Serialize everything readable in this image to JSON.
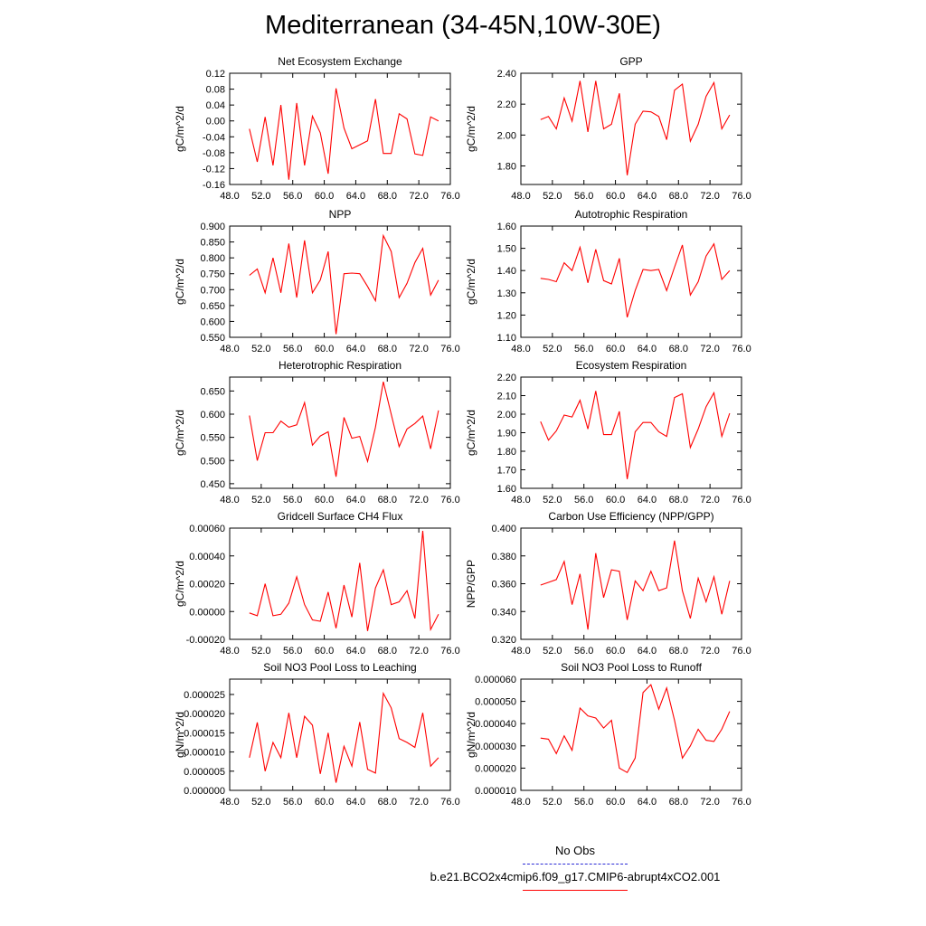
{
  "title": "Mediterranean (34-45N,10W-30E)",
  "legend": {
    "items": [
      {
        "label": "No Obs",
        "color": "#2b2bd6",
        "dash": "dashed"
      },
      {
        "label": "b.e21.BCO2x4cmip6.f09_g17.CMIP6-abrupt4xCO2.001",
        "color": "#ff0000",
        "dash": "solid"
      }
    ]
  },
  "series_color": "#ff0000",
  "chart_data": [
    {
      "type": "line",
      "title": "Net Ecosystem Exchange",
      "ylabel": "gC/m^2/d",
      "xlim": [
        48,
        76
      ],
      "ylim": [
        -0.16,
        0.12
      ],
      "xticks": [
        "48.0",
        "52.0",
        "56.0",
        "60.0",
        "64.0",
        "68.0",
        "72.0",
        "76.0"
      ],
      "yticks": [
        "-0.16",
        "-0.12",
        "-0.08",
        "-0.04",
        "0.00",
        "0.04",
        "0.08",
        "0.12"
      ],
      "x": [
        50.5,
        51.5,
        52.5,
        53.5,
        54.5,
        55.5,
        56.5,
        57.5,
        58.5,
        59.5,
        60.5,
        61.5,
        62.5,
        63.5,
        64.5,
        65.5,
        66.5,
        67.5,
        68.5,
        69.5,
        70.5,
        71.5,
        72.5,
        73.5,
        74.5
      ],
      "y": [
        -0.02,
        -0.103,
        0.01,
        -0.112,
        0.04,
        -0.148,
        0.045,
        -0.112,
        0.012,
        -0.03,
        -0.133,
        0.082,
        -0.018,
        -0.07,
        -0.06,
        -0.05,
        0.055,
        -0.082,
        -0.082,
        0.018,
        0.005,
        -0.083,
        -0.087,
        0.01,
        0.0
      ]
    },
    {
      "type": "line",
      "title": "GPP",
      "ylabel": "gC/m^2/d",
      "xlim": [
        48,
        76
      ],
      "ylim": [
        1.68,
        2.4
      ],
      "xticks": [
        "48.0",
        "52.0",
        "56.0",
        "60.0",
        "64.0",
        "68.0",
        "72.0",
        "76.0"
      ],
      "yticks": [
        "1.80",
        "2.00",
        "2.20",
        "2.40"
      ],
      "x": [
        50.5,
        51.5,
        52.5,
        53.5,
        54.5,
        55.5,
        56.5,
        57.5,
        58.5,
        59.5,
        60.5,
        61.5,
        62.5,
        63.5,
        64.5,
        65.5,
        66.5,
        67.5,
        68.5,
        69.5,
        70.5,
        71.5,
        72.5,
        73.5,
        74.5
      ],
      "y": [
        2.1,
        2.12,
        2.04,
        2.24,
        2.09,
        2.35,
        2.02,
        2.35,
        2.04,
        2.07,
        2.27,
        1.74,
        2.07,
        2.155,
        2.15,
        2.12,
        1.97,
        2.29,
        2.33,
        1.96,
        2.07,
        2.25,
        2.34,
        2.04,
        2.13
      ]
    },
    {
      "type": "line",
      "title": "NPP",
      "ylabel": "gC/m^2/d",
      "xlim": [
        48,
        76
      ],
      "ylim": [
        0.55,
        0.9
      ],
      "xticks": [
        "48.0",
        "52.0",
        "56.0",
        "60.0",
        "64.0",
        "68.0",
        "72.0",
        "76.0"
      ],
      "yticks": [
        "0.550",
        "0.600",
        "0.650",
        "0.700",
        "0.750",
        "0.800",
        "0.850",
        "0.900"
      ],
      "x": [
        50.5,
        51.5,
        52.5,
        53.5,
        54.5,
        55.5,
        56.5,
        57.5,
        58.5,
        59.5,
        60.5,
        61.5,
        62.5,
        63.5,
        64.5,
        65.5,
        66.5,
        67.5,
        68.5,
        69.5,
        70.5,
        71.5,
        72.5,
        73.5,
        74.5
      ],
      "y": [
        0.745,
        0.765,
        0.69,
        0.8,
        0.69,
        0.845,
        0.675,
        0.855,
        0.69,
        0.73,
        0.82,
        0.56,
        0.75,
        0.752,
        0.75,
        0.71,
        0.665,
        0.87,
        0.82,
        0.675,
        0.72,
        0.785,
        0.83,
        0.683,
        0.73
      ]
    },
    {
      "type": "line",
      "title": "Autotrophic Respiration",
      "ylabel": "gC/m^2/d",
      "xlim": [
        48,
        76
      ],
      "ylim": [
        1.1,
        1.6
      ],
      "xticks": [
        "48.0",
        "52.0",
        "56.0",
        "60.0",
        "64.0",
        "68.0",
        "72.0",
        "76.0"
      ],
      "yticks": [
        "1.10",
        "1.20",
        "1.30",
        "1.40",
        "1.50",
        "1.60"
      ],
      "x": [
        50.5,
        51.5,
        52.5,
        53.5,
        54.5,
        55.5,
        56.5,
        57.5,
        58.5,
        59.5,
        60.5,
        61.5,
        62.5,
        63.5,
        64.5,
        65.5,
        66.5,
        67.5,
        68.5,
        69.5,
        70.5,
        71.5,
        72.5,
        73.5,
        74.5
      ],
      "y": [
        1.365,
        1.36,
        1.35,
        1.435,
        1.4,
        1.505,
        1.345,
        1.495,
        1.355,
        1.34,
        1.455,
        1.19,
        1.31,
        1.405,
        1.4,
        1.405,
        1.31,
        1.415,
        1.515,
        1.29,
        1.35,
        1.465,
        1.52,
        1.36,
        1.4
      ]
    },
    {
      "type": "line",
      "title": "Heterotrophic Respiration",
      "ylabel": "gC/m^2/d",
      "xlim": [
        48,
        76
      ],
      "ylim": [
        0.44,
        0.68
      ],
      "xticks": [
        "48.0",
        "52.0",
        "56.0",
        "60.0",
        "64.0",
        "68.0",
        "72.0",
        "76.0"
      ],
      "yticks": [
        "0.450",
        "0.500",
        "0.550",
        "0.600",
        "0.650"
      ],
      "x": [
        50.5,
        51.5,
        52.5,
        53.5,
        54.5,
        55.5,
        56.5,
        57.5,
        58.5,
        59.5,
        60.5,
        61.5,
        62.5,
        63.5,
        64.5,
        65.5,
        66.5,
        67.5,
        68.5,
        69.5,
        70.5,
        71.5,
        72.5,
        73.5,
        74.5
      ],
      "y": [
        0.597,
        0.5,
        0.56,
        0.56,
        0.585,
        0.572,
        0.577,
        0.625,
        0.533,
        0.553,
        0.562,
        0.465,
        0.593,
        0.548,
        0.552,
        0.498,
        0.572,
        0.67,
        0.6,
        0.53,
        0.568,
        0.58,
        0.596,
        0.525,
        0.608
      ]
    },
    {
      "type": "line",
      "title": "Ecosystem Respiration",
      "ylabel": "gC/m^2/d",
      "xlim": [
        48,
        76
      ],
      "ylim": [
        1.6,
        2.2
      ],
      "xticks": [
        "48.0",
        "52.0",
        "56.0",
        "60.0",
        "64.0",
        "68.0",
        "72.0",
        "76.0"
      ],
      "yticks": [
        "1.60",
        "1.70",
        "1.80",
        "1.90",
        "2.00",
        "2.10",
        "2.20"
      ],
      "x": [
        50.5,
        51.5,
        52.5,
        53.5,
        54.5,
        55.5,
        56.5,
        57.5,
        58.5,
        59.5,
        60.5,
        61.5,
        62.5,
        63.5,
        64.5,
        65.5,
        66.5,
        67.5,
        68.5,
        69.5,
        70.5,
        71.5,
        72.5,
        73.5,
        74.5
      ],
      "y": [
        1.96,
        1.86,
        1.91,
        1.995,
        1.985,
        2.075,
        1.92,
        2.125,
        1.89,
        1.89,
        2.015,
        1.65,
        1.905,
        1.955,
        1.955,
        1.905,
        1.88,
        2.09,
        2.11,
        1.82,
        1.92,
        2.04,
        2.115,
        1.88,
        2.005
      ]
    },
    {
      "type": "line",
      "title": "Gridcell Surface CH4 Flux",
      "ylabel": "gC/m^2/d",
      "xlim": [
        48,
        76
      ],
      "ylim": [
        -0.0002,
        0.0006
      ],
      "xticks": [
        "48.0",
        "52.0",
        "56.0",
        "60.0",
        "64.0",
        "68.0",
        "72.0",
        "76.0"
      ],
      "yticks": [
        "-0.00020",
        "0.00000",
        "0.00020",
        "0.00040",
        "0.00060"
      ],
      "x": [
        50.5,
        51.5,
        52.5,
        53.5,
        54.5,
        55.5,
        56.5,
        57.5,
        58.5,
        59.5,
        60.5,
        61.5,
        62.5,
        63.5,
        64.5,
        65.5,
        66.5,
        67.5,
        68.5,
        69.5,
        70.5,
        71.5,
        72.5,
        73.5,
        74.5
      ],
      "y": [
        -1e-05,
        -3e-05,
        0.0002,
        -3e-05,
        -2e-05,
        6e-05,
        0.00025,
        5e-05,
        -6e-05,
        -7e-05,
        0.00014,
        -0.00012,
        0.00019,
        -4e-05,
        0.00035,
        -0.00014,
        0.00017,
        0.0003,
        5e-05,
        7e-05,
        0.00015,
        -5e-05,
        0.00058,
        -0.00013,
        -2e-05
      ]
    },
    {
      "type": "line",
      "title": "Carbon Use Efficiency (NPP/GPP)",
      "ylabel": "NPP/GPP",
      "xlim": [
        48,
        76
      ],
      "ylim": [
        0.32,
        0.4
      ],
      "xticks": [
        "48.0",
        "52.0",
        "56.0",
        "60.0",
        "64.0",
        "68.0",
        "72.0",
        "76.0"
      ],
      "yticks": [
        "0.320",
        "0.340",
        "0.360",
        "0.380",
        "0.400"
      ],
      "x": [
        50.5,
        51.5,
        52.5,
        53.5,
        54.5,
        55.5,
        56.5,
        57.5,
        58.5,
        59.5,
        60.5,
        61.5,
        62.5,
        63.5,
        64.5,
        65.5,
        66.5,
        67.5,
        68.5,
        69.5,
        70.5,
        71.5,
        72.5,
        73.5,
        74.5
      ],
      "y": [
        0.359,
        0.361,
        0.363,
        0.376,
        0.345,
        0.367,
        0.327,
        0.382,
        0.35,
        0.37,
        0.369,
        0.334,
        0.362,
        0.355,
        0.369,
        0.355,
        0.357,
        0.391,
        0.355,
        0.335,
        0.364,
        0.347,
        0.365,
        0.338,
        0.362
      ]
    },
    {
      "type": "line",
      "title": "Soil NO3 Pool Loss to Leaching",
      "ylabel": "gN/m^2/d",
      "xlim": [
        48,
        76
      ],
      "ylim": [
        0.0,
        2.9e-05
      ],
      "xticks": [
        "48.0",
        "52.0",
        "56.0",
        "60.0",
        "64.0",
        "68.0",
        "72.0",
        "76.0"
      ],
      "yticks": [
        "0.000000",
        "0.000005",
        "0.000010",
        "0.000015",
        "0.000020",
        "0.000025"
      ],
      "x": [
        50.5,
        51.5,
        52.5,
        53.5,
        54.5,
        55.5,
        56.5,
        57.5,
        58.5,
        59.5,
        60.5,
        61.5,
        62.5,
        63.5,
        64.5,
        65.5,
        66.5,
        67.5,
        68.5,
        69.5,
        70.5,
        71.5,
        72.5,
        73.5,
        74.5
      ],
      "y": [
        8.5e-06,
        1.77e-05,
        5e-06,
        1.25e-05,
        8.5e-06,
        2.02e-05,
        8.5e-06,
        1.93e-05,
        1.7e-05,
        4.3e-06,
        1.5e-05,
        2e-06,
        1.15e-05,
        6.3e-06,
        1.78e-05,
        5.5e-06,
        4.5e-06,
        2.53e-05,
        2.15e-05,
        1.35e-05,
        1.25e-05,
        1.12e-05,
        2.02e-05,
        6.3e-06,
        8.5e-06
      ]
    },
    {
      "type": "line",
      "title": "Soil NO3 Pool Loss to Runoff",
      "ylabel": "gN/m^2/d",
      "xlim": [
        48,
        76
      ],
      "ylim": [
        1e-05,
        6e-05
      ],
      "xticks": [
        "48.0",
        "52.0",
        "56.0",
        "60.0",
        "64.0",
        "68.0",
        "72.0",
        "76.0"
      ],
      "yticks": [
        "0.000010",
        "0.000020",
        "0.000030",
        "0.000040",
        "0.000050",
        "0.000060"
      ],
      "x": [
        50.5,
        51.5,
        52.5,
        53.5,
        54.5,
        55.5,
        56.5,
        57.5,
        58.5,
        59.5,
        60.5,
        61.5,
        62.5,
        63.5,
        64.5,
        65.5,
        66.5,
        67.5,
        68.5,
        69.5,
        70.5,
        71.5,
        72.5,
        73.5,
        74.5
      ],
      "y": [
        3.35e-05,
        3.3e-05,
        2.65e-05,
        3.45e-05,
        2.8e-05,
        4.7e-05,
        4.35e-05,
        4.25e-05,
        3.8e-05,
        4.15e-05,
        2e-05,
        1.8e-05,
        2.45e-05,
        5.4e-05,
        5.75e-05,
        4.65e-05,
        5.6e-05,
        4.15e-05,
        2.45e-05,
        3e-05,
        3.75e-05,
        3.25e-05,
        3.2e-05,
        3.75e-05,
        4.55e-05
      ]
    }
  ]
}
